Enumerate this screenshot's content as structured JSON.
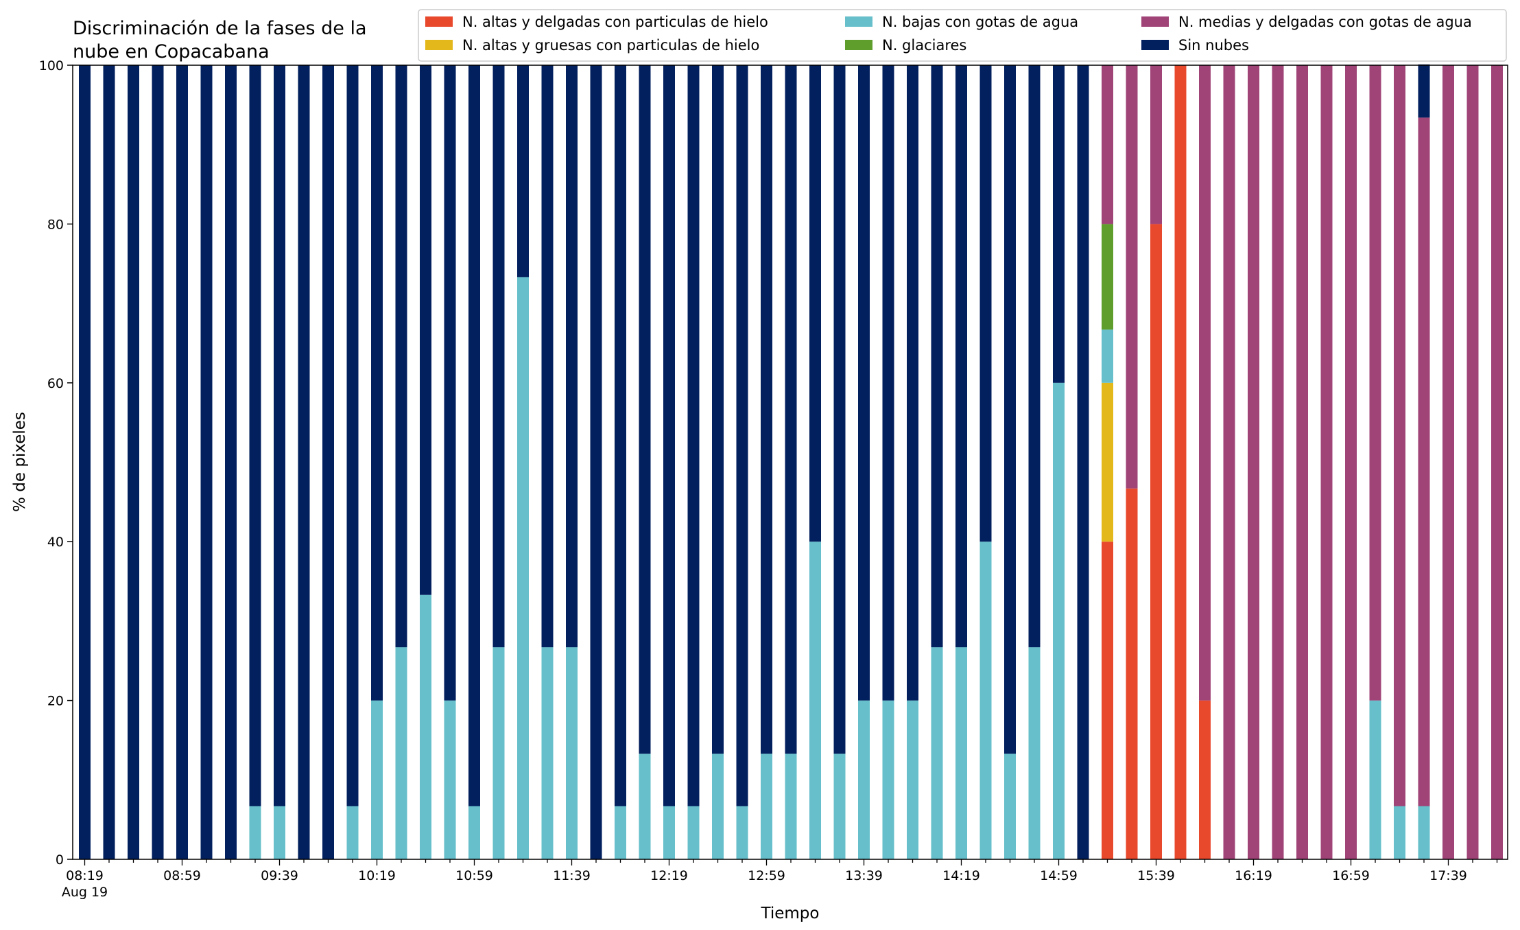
{
  "chart_data": {
    "type": "bar",
    "stacked": true,
    "title_line1": "Discriminación de la fases de la",
    "title_line2": "nube en Copacabana",
    "xlabel": "Tiempo",
    "ylabel": "% de pixeles",
    "ylim": [
      0,
      100
    ],
    "yticks": [
      0,
      20,
      40,
      60,
      80,
      100
    ],
    "grid": false,
    "legend_position": "top-right",
    "x_start": "08:19",
    "x_interval_minutes": 10,
    "x_tick_labels": [
      "08:19",
      "08:59",
      "09:39",
      "10:19",
      "10:59",
      "11:39",
      "12:19",
      "12:59",
      "13:39",
      "14:19",
      "14:59",
      "15:39",
      "16:19",
      "16:59",
      "17:39"
    ],
    "x_date_label": "Aug 19",
    "series": [
      {
        "name": "N. altas y delgadas con particulas de hielo",
        "color": "#e8492d",
        "values": [
          0,
          0,
          0,
          0,
          0,
          0,
          0,
          0,
          0,
          0,
          0,
          0,
          0,
          0,
          0,
          0,
          0,
          0,
          0,
          0,
          0,
          0,
          0,
          0,
          0,
          0,
          0,
          0,
          0,
          0,
          0,
          0,
          0,
          0,
          0,
          0,
          0,
          0,
          0,
          0,
          0,
          0,
          40,
          46.7,
          80,
          100,
          20,
          0,
          0,
          0,
          0,
          0,
          0,
          0,
          0,
          0,
          0,
          0,
          0
        ]
      },
      {
        "name": "N. altas y gruesas con particulas de hielo",
        "color": "#e3b81b",
        "values": [
          0,
          0,
          0,
          0,
          0,
          0,
          0,
          0,
          0,
          0,
          0,
          0,
          0,
          0,
          0,
          0,
          0,
          0,
          0,
          0,
          0,
          0,
          0,
          0,
          0,
          0,
          0,
          0,
          0,
          0,
          0,
          0,
          0,
          0,
          0,
          0,
          0,
          0,
          0,
          0,
          0,
          0,
          20,
          0,
          0,
          0,
          0,
          0,
          0,
          0,
          0,
          0,
          0,
          0,
          0,
          0,
          0,
          0,
          0
        ]
      },
      {
        "name": "N. bajas con gotas de agua",
        "color": "#66bfca",
        "values": [
          0,
          0,
          0,
          0,
          0,
          0,
          0,
          6.7,
          6.7,
          0,
          0,
          6.7,
          20,
          26.7,
          33.3,
          20,
          6.7,
          26.7,
          73.3,
          26.7,
          26.7,
          0,
          6.7,
          13.3,
          6.7,
          6.7,
          13.3,
          6.7,
          13.3,
          13.3,
          40,
          13.3,
          20,
          20,
          20,
          26.7,
          26.7,
          40,
          13.3,
          26.7,
          60,
          0,
          6.7,
          0,
          0,
          0,
          0,
          0,
          0,
          0,
          0,
          0,
          0,
          20,
          6.7,
          6.7,
          0,
          0,
          0
        ]
      },
      {
        "name": "N. glaciares",
        "color": "#5f9e2d",
        "values": [
          0,
          0,
          0,
          0,
          0,
          0,
          0,
          0,
          0,
          0,
          0,
          0,
          0,
          0,
          0,
          0,
          0,
          0,
          0,
          0,
          0,
          0,
          0,
          0,
          0,
          0,
          0,
          0,
          0,
          0,
          0,
          0,
          0,
          0,
          0,
          0,
          0,
          0,
          0,
          0,
          0,
          0,
          13.3,
          0,
          0,
          0,
          0,
          0,
          0,
          0,
          0,
          0,
          0,
          0,
          0,
          0,
          0,
          0,
          0
        ]
      },
      {
        "name": "N. medias y delgadas con gotas de agua",
        "color": "#a04478",
        "values": [
          0,
          0,
          0,
          0,
          0,
          0,
          0,
          0,
          0,
          0,
          0,
          0,
          0,
          0,
          0,
          0,
          0,
          0,
          0,
          0,
          0,
          0,
          0,
          0,
          0,
          0,
          0,
          0,
          0,
          0,
          0,
          0,
          0,
          0,
          0,
          0,
          0,
          0,
          0,
          0,
          0,
          0,
          20,
          53.3,
          20,
          0,
          80,
          100,
          100,
          100,
          100,
          100,
          100,
          80,
          93.3,
          86.7,
          100,
          100,
          100
        ]
      },
      {
        "name": "Sin nubes",
        "color": "#021f5e",
        "values": [
          100,
          100,
          100,
          100,
          100,
          100,
          100,
          93.3,
          93.3,
          100,
          100,
          93.3,
          80,
          73.3,
          66.7,
          80,
          93.3,
          73.3,
          26.7,
          73.3,
          73.3,
          100,
          93.3,
          86.7,
          93.3,
          93.3,
          86.7,
          93.3,
          86.7,
          86.7,
          60,
          86.7,
          80,
          80,
          80,
          73.3,
          73.3,
          60,
          86.7,
          73.3,
          40,
          100,
          0,
          0,
          0,
          0,
          0,
          0,
          0,
          0,
          0,
          0,
          0,
          0,
          0,
          6.7,
          0,
          0,
          0
        ]
      }
    ]
  }
}
